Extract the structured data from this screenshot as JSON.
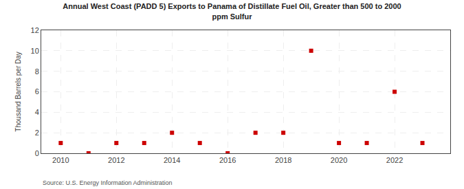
{
  "chart_data": {
    "type": "scatter",
    "title": "Annual West Coast (PADD 5) Exports to Panama of Distillate Fuel Oil, Greater than 500 to 2000\nppm Sulfur",
    "y_label": "Thousand Barrels per Day",
    "annotations": [
      "Source: U.S. Energy Information Administration"
    ],
    "x": [
      2010,
      2011,
      2012,
      2013,
      2014,
      2015,
      2016,
      2017,
      2018,
      2019,
      2020,
      2021,
      2022,
      2023
    ],
    "values": [
      1,
      0,
      1,
      1,
      2,
      1,
      0,
      2,
      2,
      10,
      1,
      1,
      6,
      1
    ],
    "color": "#cc0000",
    "marker": "square",
    "xlim": [
      2009.3,
      2024.0
    ],
    "xticks": [
      2010,
      2012,
      2014,
      2016,
      2018,
      2020,
      2022
    ],
    "ylim": [
      0,
      12
    ],
    "yticks": [
      0,
      2,
      4,
      6,
      8,
      10,
      12
    ],
    "grid": true
  }
}
